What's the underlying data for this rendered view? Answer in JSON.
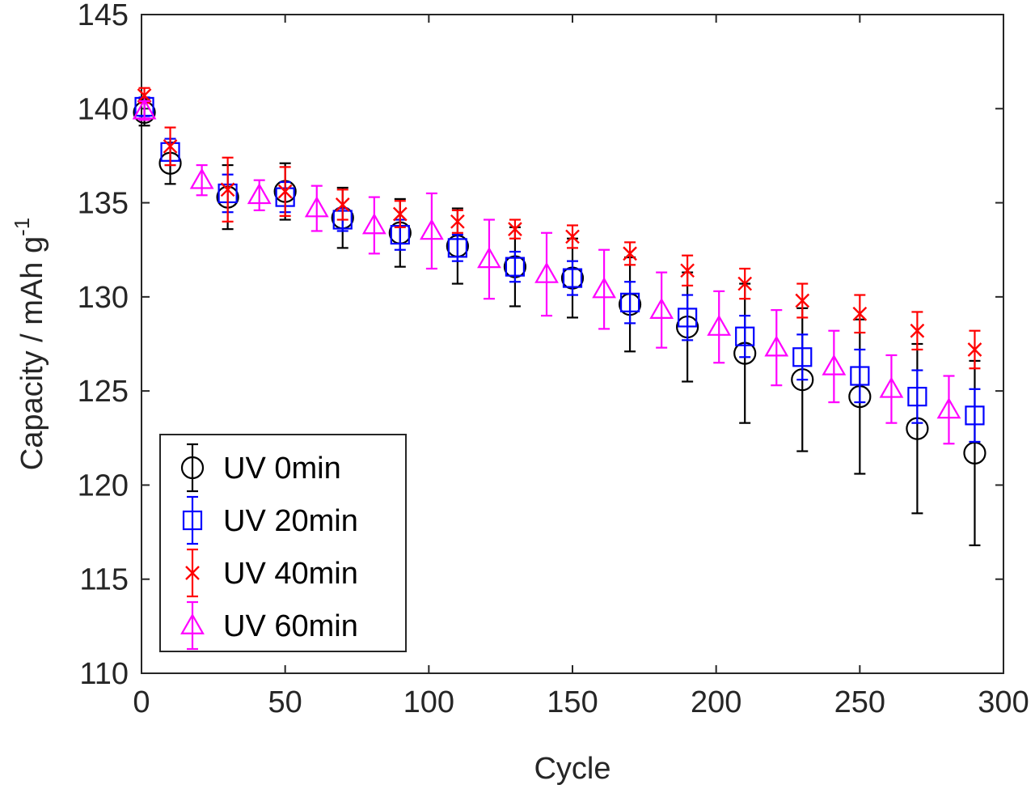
{
  "chart_data": {
    "type": "scatter",
    "title": "",
    "xlabel": "Cycle",
    "ylabel": "Capacity / mAh g",
    "ylabel_superscript": "-1",
    "xlim": [
      0,
      300
    ],
    "ylim": [
      110,
      145
    ],
    "xticks": [
      "0",
      "50",
      "100",
      "150",
      "200",
      "250",
      "300"
    ],
    "yticks": [
      "110",
      "115",
      "120",
      "125",
      "130",
      "135",
      "140",
      "145"
    ],
    "grid": false,
    "legend_position": "bottom-left",
    "series": [
      {
        "name": "UV 0min",
        "color": "#000000",
        "marker": "circle",
        "x": [
          1,
          10,
          30,
          50,
          70,
          90,
          110,
          130,
          150,
          170,
          190,
          210,
          230,
          250,
          270,
          290
        ],
        "y": [
          139.8,
          137.1,
          135.3,
          135.6,
          134.2,
          133.4,
          132.7,
          131.6,
          131.0,
          129.6,
          128.4,
          127.0,
          125.6,
          124.7,
          123.0,
          121.7
        ],
        "err": [
          0.7,
          1.1,
          1.7,
          1.5,
          1.6,
          1.8,
          2.0,
          2.1,
          2.1,
          2.5,
          2.9,
          3.7,
          3.8,
          4.1,
          4.5,
          4.9
        ]
      },
      {
        "name": "UV 20min",
        "color": "#0000ff",
        "marker": "square",
        "x": [
          1,
          10,
          30,
          50,
          70,
          90,
          110,
          130,
          150,
          170,
          190,
          210,
          230,
          250,
          270,
          290
        ],
        "y": [
          140.1,
          137.7,
          135.5,
          135.3,
          134.1,
          133.3,
          132.6,
          131.6,
          131.0,
          129.7,
          128.9,
          127.9,
          126.8,
          125.8,
          124.7,
          123.7
        ],
        "err": [
          0.5,
          0.7,
          1.0,
          0.8,
          0.6,
          0.8,
          0.7,
          0.8,
          0.9,
          1.1,
          1.2,
          1.1,
          1.2,
          1.4,
          1.4,
          1.4
        ]
      },
      {
        "name": "UV 40min",
        "color": "#ff0000",
        "marker": "x",
        "x": [
          1,
          10,
          30,
          50,
          70,
          90,
          110,
          130,
          150,
          170,
          190,
          210,
          230,
          250,
          270,
          290
        ],
        "y": [
          140.7,
          138.0,
          135.7,
          135.6,
          134.9,
          134.4,
          134.0,
          133.6,
          133.2,
          132.3,
          131.4,
          130.7,
          129.8,
          129.1,
          128.2,
          127.2
        ],
        "err": [
          0.4,
          1.0,
          1.7,
          1.3,
          0.8,
          0.7,
          0.6,
          0.5,
          0.6,
          0.6,
          0.8,
          0.8,
          0.9,
          1.0,
          1.0,
          1.0
        ]
      },
      {
        "name": "UV 60min",
        "color": "#ff00ff",
        "marker": "triangle",
        "x": [
          1,
          21,
          41,
          61,
          81,
          101,
          121,
          141,
          161,
          181,
          201,
          221,
          241,
          261,
          281
        ],
        "y": [
          139.9,
          136.2,
          135.4,
          134.7,
          133.8,
          133.5,
          132.0,
          131.2,
          130.4,
          129.3,
          128.4,
          127.3,
          126.3,
          125.1,
          124.0
        ],
        "err": [
          0.5,
          0.8,
          0.8,
          1.2,
          1.5,
          2.0,
          2.1,
          2.2,
          2.1,
          2.0,
          1.9,
          2.0,
          1.9,
          1.8,
          1.8
        ]
      }
    ]
  }
}
